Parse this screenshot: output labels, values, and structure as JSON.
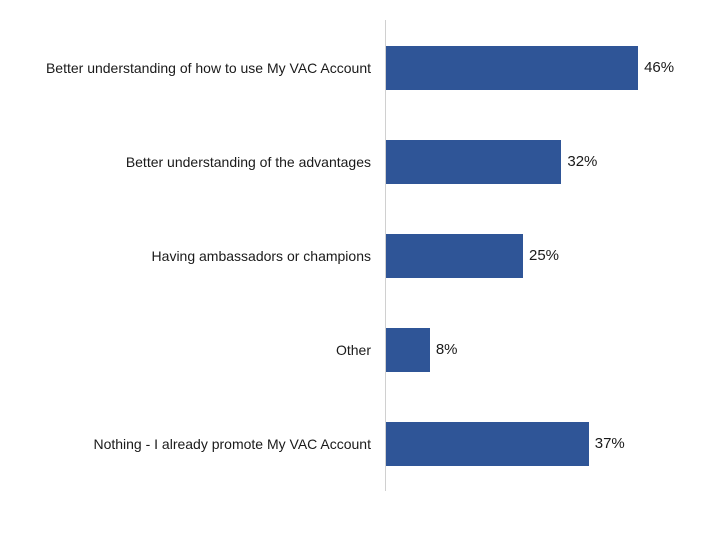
{
  "chart_data": {
    "type": "bar",
    "orientation": "horizontal",
    "title": "",
    "xlabel": "",
    "ylabel": "",
    "categories": [
      "Better understanding of how to use My VAC Account",
      "Better understanding of the advantages",
      "Having ambassadors or champions",
      "Other",
      "Nothing - I already promote My VAC Account"
    ],
    "values": [
      46,
      32,
      25,
      8,
      37
    ],
    "value_labels": [
      "46%",
      "32%",
      "25%",
      "8%",
      "37%"
    ],
    "unit": "%",
    "xlim": [
      0,
      60
    ],
    "grid": false,
    "legend": null,
    "bar_color": "#2f5597"
  }
}
